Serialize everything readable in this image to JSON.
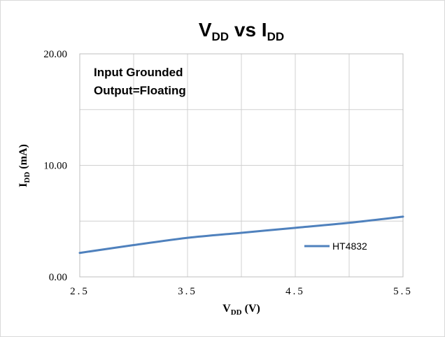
{
  "chart_data": {
    "type": "line",
    "title": {
      "main": "V",
      "main_sub": "DD",
      "mid": " vs I",
      "mid_sub": "DD"
    },
    "xlabel": {
      "main": "V",
      "sub": "DD",
      "unit": " (V)"
    },
    "ylabel": {
      "main": "I",
      "sub": "DD",
      "unit": " (mA)"
    },
    "x_ticks": [
      "2.5",
      "3.5",
      "4.5",
      "5.5"
    ],
    "x_tick_values": [
      2.5,
      3.5,
      4.5,
      5.5
    ],
    "y_ticks": [
      "0.00",
      "10.00",
      "20.00"
    ],
    "y_tick_values": [
      0,
      10,
      20
    ],
    "xlim": [
      2.5,
      5.5
    ],
    "ylim": [
      0,
      20
    ],
    "x_gridlines": [
      2.5,
      3.0,
      3.5,
      4.0,
      4.5,
      5.0,
      5.5
    ],
    "y_gridlines": [
      0,
      5,
      10,
      15,
      20
    ],
    "grid": true,
    "legend_position": "bottom-right",
    "annotations": [
      "Input Grounded",
      "Output=Floating"
    ],
    "series": [
      {
        "name": "HT4832",
        "color": "#4f81bd",
        "x": [
          2.5,
          3.0,
          3.5,
          4.0,
          4.5,
          5.0,
          5.5
        ],
        "y": [
          2.15,
          2.85,
          3.5,
          3.95,
          4.4,
          4.85,
          5.4
        ]
      }
    ]
  }
}
